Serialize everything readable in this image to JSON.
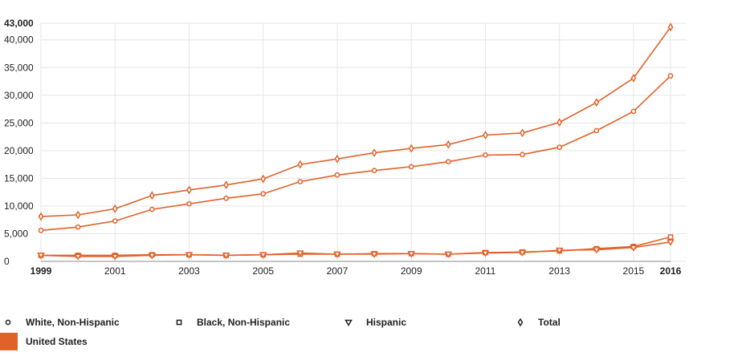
{
  "chart_data": {
    "type": "line",
    "title": "",
    "xlabel": "",
    "ylabel": "",
    "x": [
      1999,
      2000,
      2001,
      2002,
      2003,
      2004,
      2005,
      2006,
      2007,
      2008,
      2009,
      2010,
      2011,
      2012,
      2013,
      2014,
      2015,
      2016
    ],
    "x_tick_labels": [
      "1999",
      "2001",
      "2003",
      "2005",
      "2007",
      "2009",
      "2011",
      "2013",
      "2015",
      "2016"
    ],
    "y_tick_labels": [
      "0",
      "5,000",
      "10,000",
      "15,000",
      "20,000",
      "25,000",
      "30,000",
      "35,000",
      "40,000",
      "43,000"
    ],
    "ylim": [
      0,
      43000
    ],
    "grid": true,
    "legend_position": "bottom",
    "series_color": "#E0622A",
    "series": [
      {
        "name": "White, Non-Hispanic",
        "marker": "circle",
        "values": [
          5600,
          6200,
          7300,
          9400,
          10400,
          11400,
          12200,
          14400,
          15600,
          16400,
          17100,
          18000,
          19200,
          19300,
          20600,
          23600,
          27100,
          33500
        ]
      },
      {
        "name": "Black, Non-Hispanic",
        "marker": "square",
        "values": [
          1100,
          1100,
          1100,
          1200,
          1200,
          1100,
          1200,
          1300,
          1300,
          1400,
          1400,
          1300,
          1600,
          1700,
          1900,
          2300,
          2700,
          4400
        ]
      },
      {
        "name": "Hispanic",
        "marker": "triangle",
        "values": [
          1100,
          900,
          900,
          1100,
          1200,
          1100,
          1200,
          1500,
          1300,
          1300,
          1400,
          1300,
          1500,
          1600,
          2000,
          2100,
          2500,
          3500
        ]
      },
      {
        "name": "Total",
        "marker": "diamond",
        "values": [
          8100,
          8400,
          9500,
          11900,
          12900,
          13800,
          14900,
          17500,
          18500,
          19600,
          20400,
          21100,
          22800,
          23200,
          25100,
          28700,
          33100,
          42300
        ]
      }
    ],
    "geography_legend": {
      "label": "United States",
      "color": "#E0622A"
    }
  }
}
